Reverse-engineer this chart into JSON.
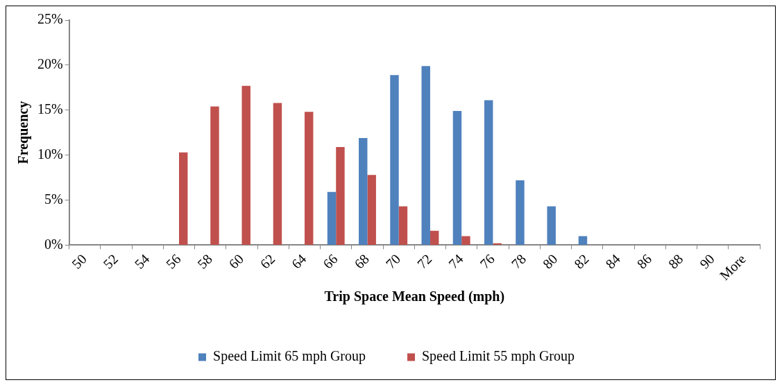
{
  "chart_data": {
    "type": "bar",
    "xlabel": "Trip Space Mean Speed (mph)",
    "ylabel": "Frequency",
    "categories": [
      "50",
      "52",
      "54",
      "56",
      "58",
      "60",
      "62",
      "64",
      "66",
      "68",
      "70",
      "72",
      "74",
      "76",
      "78",
      "80",
      "82",
      "84",
      "86",
      "88",
      "90",
      "More"
    ],
    "series": [
      {
        "name": "Speed Limit 65 mph Group",
        "color": "#4f81bd",
        "values": [
          0,
          0,
          0,
          0,
          0,
          0,
          0,
          0,
          5.9,
          11.9,
          18.9,
          19.9,
          14.9,
          16.1,
          7.2,
          4.3,
          1.0,
          0,
          0,
          0,
          0,
          0
        ]
      },
      {
        "name": "Speed Limit 55 mph Group",
        "color": "#c0504d",
        "values": [
          0,
          0,
          0,
          10.3,
          15.4,
          17.7,
          15.8,
          14.8,
          10.9,
          7.8,
          4.3,
          1.6,
          1.0,
          0.2,
          0,
          0,
          0,
          0,
          0,
          0,
          0,
          0
        ]
      }
    ],
    "ylim": [
      0,
      25
    ],
    "yticks": [
      {
        "value": 0,
        "label": "0%"
      },
      {
        "value": 5,
        "label": "5%"
      },
      {
        "value": 10,
        "label": "10%"
      },
      {
        "value": 15,
        "label": "15%"
      },
      {
        "value": 20,
        "label": "20%"
      },
      {
        "value": 25,
        "label": "25%"
      }
    ],
    "legend": "bottom"
  }
}
